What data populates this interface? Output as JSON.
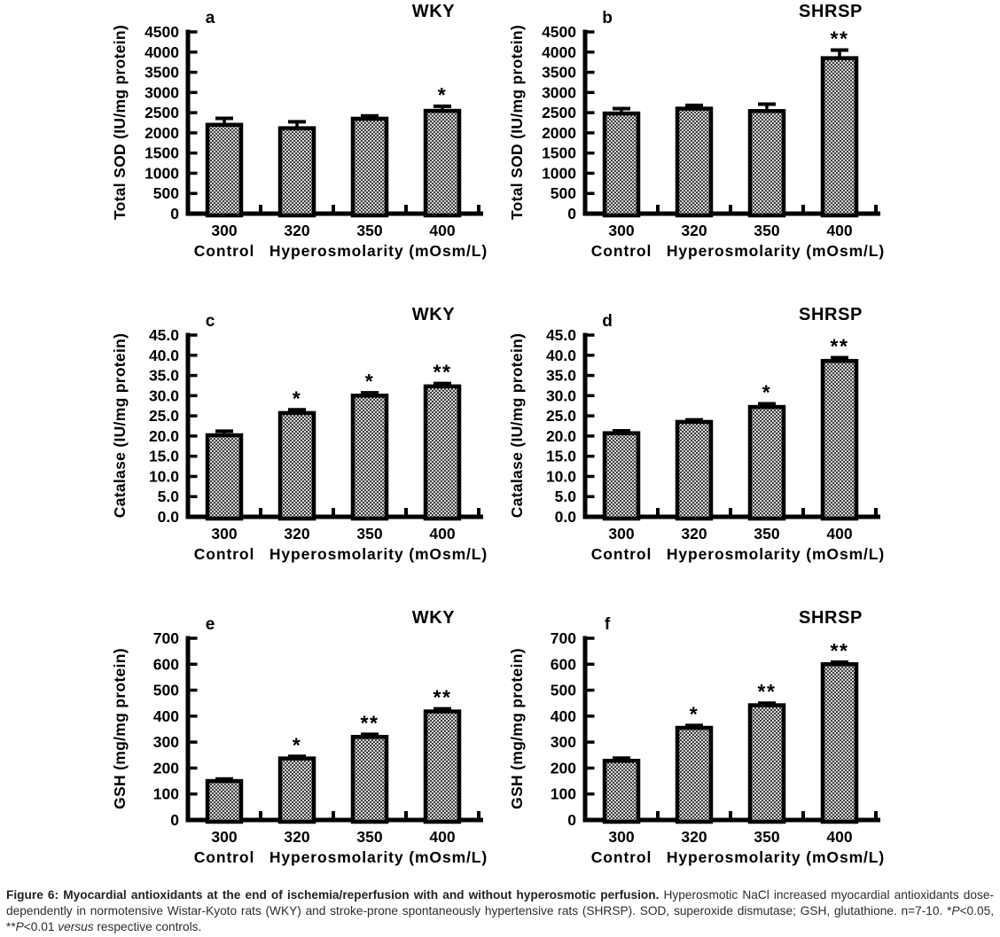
{
  "figure": {
    "caption": {
      "bold": "Figure 6: Myocardial antioxidants at the end of ischemia/reperfusion with and without hyperosmotic perfusion.",
      "normal_1": " Hyperosmotic NaCl increased myocardial antioxidants dose-dependently in normotensive Wistar-Kyoto rats (WKY) and stroke-prone spontaneously hypertensive rats (SHRSP). SOD, superoxide dismutase; GSH, glutathione. n=7-10. *",
      "p1": "P",
      "seg2": "<0.05, **",
      "p2": "P",
      "seg3": "<0.01 ",
      "versus": "versus",
      "seg4": " respective controls."
    }
  },
  "chart_data": {
    "type": "bar",
    "categories": [
      "300",
      "320",
      "350",
      "400"
    ],
    "x_axis_title_left": "Control",
    "x_axis_title_right": "Hyperosmolarity (mOsm/L)",
    "error_bars": true,
    "bar_fill": "checkered-gray",
    "bar_fill_light": "#d6d6d6",
    "bar_fill_dark": "#3f3f3f",
    "axis_color": "#000000",
    "grid": false,
    "legend": "none",
    "panels": [
      {
        "panel_label": "a",
        "group": "WKY",
        "ylabel": "Total SOD (IU/mg protein)",
        "ylim": [
          0,
          4500
        ],
        "ystep": 500,
        "ydecimals": 0,
        "values": [
          2200,
          2115,
          2350,
          2545
        ],
        "errors": [
          160,
          160,
          70,
          115
        ],
        "sig": [
          "",
          "",
          "",
          "*"
        ]
      },
      {
        "panel_label": "b",
        "group": "SHRSP",
        "ylabel": "Total SOD (IU/mg protein)",
        "ylim": [
          0,
          4500
        ],
        "ystep": 500,
        "ydecimals": 0,
        "values": [
          2480,
          2600,
          2540,
          3850
        ],
        "errors": [
          120,
          80,
          170,
          200
        ],
        "sig": [
          "",
          "",
          "",
          "**"
        ]
      },
      {
        "panel_label": "c",
        "group": "WKY",
        "ylabel": "Catalase (IU/mg protein)",
        "ylim": [
          0,
          45
        ],
        "ystep": 5,
        "ydecimals": 1,
        "values": [
          20.2,
          25.7,
          30.0,
          32.3
        ],
        "errors": [
          1.0,
          0.8,
          0.7,
          0.7
        ],
        "sig": [
          "",
          "*",
          "*",
          "**"
        ]
      },
      {
        "panel_label": "d",
        "group": "SHRSP",
        "ylabel": "Catalase (IU/mg protein)",
        "ylim": [
          0,
          45
        ],
        "ystep": 5,
        "ydecimals": 1,
        "values": [
          20.7,
          23.5,
          27.2,
          38.6
        ],
        "errors": [
          0.6,
          0.5,
          0.8,
          0.8
        ],
        "sig": [
          "",
          "",
          "*",
          "**"
        ]
      },
      {
        "panel_label": "e",
        "group": "WKY",
        "ylabel": "GSH (mg/mg protein)",
        "ylim": [
          0,
          700
        ],
        "ystep": 100,
        "ydecimals": 0,
        "values": [
          150,
          237,
          320,
          418
        ],
        "errors": [
          8,
          8,
          10,
          10
        ],
        "sig": [
          "",
          "*",
          "**",
          "**"
        ]
      },
      {
        "panel_label": "f",
        "group": "SHRSP",
        "ylabel": "GSH (mg/mg protein)",
        "ylim": [
          0,
          700
        ],
        "ystep": 100,
        "ydecimals": 0,
        "values": [
          228,
          355,
          442,
          600
        ],
        "errors": [
          10,
          9,
          8,
          8
        ],
        "sig": [
          "",
          "*",
          "**",
          "**"
        ]
      }
    ]
  }
}
